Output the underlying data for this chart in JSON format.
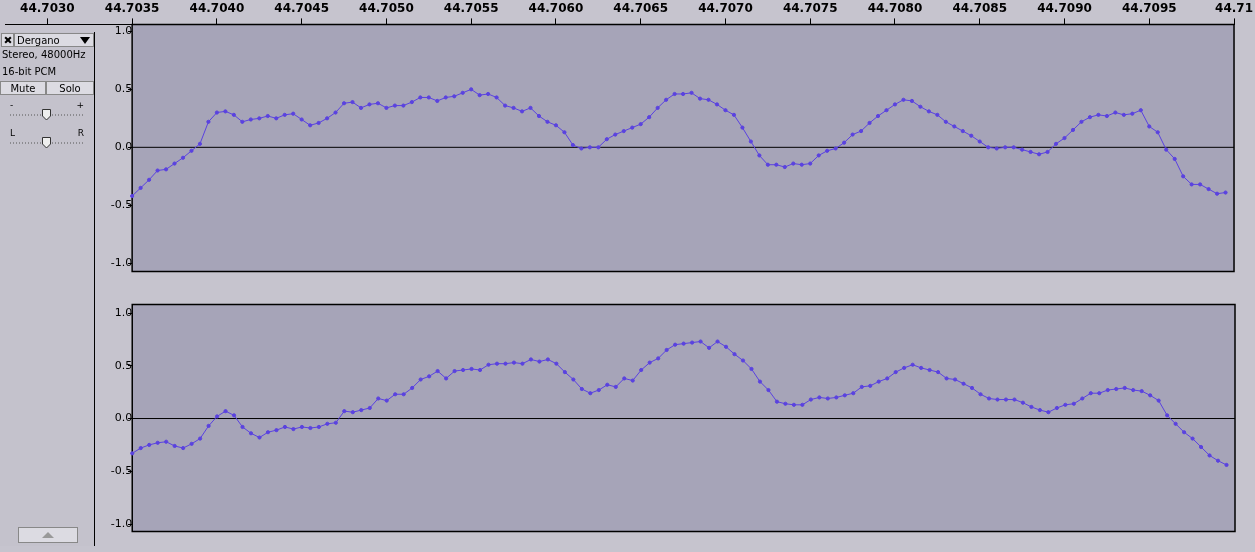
{
  "chart_data": [
    {
      "type": "line",
      "annotations": [
        "Dergano",
        "Stereo, 48000Hz",
        "16-bit PCM",
        "Mute",
        "Solo",
        "-",
        "+",
        "L",
        "R"
      ],
      "x": [
        44.7035,
        44.70355,
        44.7036,
        44.70365,
        44.7037,
        44.70375,
        44.7038,
        44.70385,
        44.7039,
        44.70395,
        44.704,
        44.70405,
        44.7041,
        44.70415,
        44.7042,
        44.70425,
        44.7043,
        44.70435,
        44.7044,
        44.70445,
        44.7045,
        44.70455,
        44.7046,
        44.70465,
        44.7047,
        44.70475,
        44.7048,
        44.70485,
        44.7049,
        44.70495,
        44.705,
        44.70505,
        44.7051,
        44.70515,
        44.7052,
        44.70525,
        44.7053,
        44.70535,
        44.7054,
        44.70545,
        44.7055,
        44.70555,
        44.7056,
        44.70565,
        44.7057,
        44.70575,
        44.7058,
        44.70585,
        44.7059,
        44.70595,
        44.706,
        44.70605,
        44.7061,
        44.70615,
        44.7062,
        44.70625,
        44.7063,
        44.70635,
        44.7064,
        44.70645,
        44.7065,
        44.70655,
        44.7066,
        44.70665,
        44.7067,
        44.70675,
        44.7068,
        44.70685,
        44.7069,
        44.70695,
        44.707,
        44.70705,
        44.7071,
        44.70715,
        44.7072,
        44.70725,
        44.7073,
        44.70735,
        44.7074,
        44.70745,
        44.7075,
        44.70755,
        44.7076,
        44.70765,
        44.7077,
        44.70775,
        44.7078,
        44.70785,
        44.7079,
        44.70795,
        44.708,
        44.70805,
        44.7081,
        44.70815,
        44.7082,
        44.70825,
        44.7083,
        44.70835,
        44.7084,
        44.70845,
        44.7085,
        44.70855,
        44.7086,
        44.70865,
        44.7087,
        44.70875,
        44.7088,
        44.70885,
        44.7089,
        44.70895,
        44.709,
        44.70905,
        44.7091,
        44.70915,
        44.7092,
        44.70925,
        44.7093,
        44.70935,
        44.7094,
        44.70945,
        44.7095,
        44.70955,
        44.7096,
        44.70965,
        44.7097,
        44.70975,
        44.7098,
        44.70985,
        44.7099,
        44.70995
      ],
      "series": [
        {
          "color": "#5a42e0",
          "values": [
            -0.42,
            -0.35,
            -0.28,
            -0.2,
            -0.19,
            -0.14,
            -0.09,
            -0.03,
            0.03,
            0.22,
            0.3,
            0.31,
            0.28,
            0.22,
            0.24,
            0.25,
            0.27,
            0.25,
            0.28,
            0.29,
            0.24,
            0.19,
            0.21,
            0.25,
            0.3,
            0.38,
            0.39,
            0.34,
            0.37,
            0.38,
            0.34,
            0.36,
            0.36,
            0.39,
            0.43,
            0.43,
            0.4,
            0.43,
            0.44,
            0.47,
            0.5,
            0.45,
            0.46,
            0.43,
            0.36,
            0.34,
            0.31,
            0.34,
            0.27,
            0.22,
            0.19,
            0.13,
            0.02,
            -0.01,
            0,
            0,
            0.07,
            0.11,
            0.14,
            0.17,
            0.2,
            0.26,
            0.34,
            0.41,
            0.46,
            0.46,
            0.47,
            0.42,
            0.41,
            0.37,
            0.32,
            0.28,
            0.17,
            0.05,
            -0.07,
            -0.15,
            -0.15,
            -0.17,
            -0.14,
            -0.15,
            -0.14,
            -0.07,
            -0.03,
            -0.01,
            0.04,
            0.11,
            0.14,
            0.21,
            0.27,
            0.32,
            0.37,
            0.41,
            0.4,
            0.35,
            0.31,
            0.28,
            0.22,
            0.18,
            0.14,
            0.1,
            0.05,
            0,
            -0.01,
            0,
            0,
            -0.02,
            -0.04,
            -0.06,
            -0.04,
            0.03,
            0.08,
            0.15,
            0.22,
            0.26,
            0.28,
            0.27,
            0.3,
            0.28,
            0.29,
            0.32,
            0.18,
            0.13,
            -0.02,
            -0.1,
            -0.25,
            -0.32,
            -0.32,
            -0.36,
            -0.4,
            -0.39
          ]
        }
      ],
      "xlim": [
        44.70275,
        44.71
      ],
      "xticks": [
        {
          "value": 44.703,
          "label": "44.7030"
        },
        44.7035,
        {
          "value": 44.704,
          "label": "44.7040"
        },
        44.7045,
        {
          "value": 44.705,
          "label": "44.7050"
        },
        44.7055,
        {
          "value": 44.706,
          "label": "44.7060"
        },
        44.7065,
        {
          "value": 44.707,
          "label": "44.7070"
        },
        44.7075,
        {
          "value": 44.708,
          "label": "44.7080"
        },
        44.7085,
        {
          "value": 44.709,
          "label": "44.7090"
        },
        44.7095,
        44.71
      ],
      "ylim": [
        -1.07,
        1.06
      ],
      "yticks": [
        {
          "value": -1,
          "label": "-1.0"
        },
        {
          "value": -0.5,
          "label": "-0.5"
        },
        {
          "value": 0,
          "label": "0.0"
        },
        {
          "value": 0.5,
          "label": "0.5"
        },
        {
          "value": 1,
          "label": "1.0"
        }
      ],
      "ref_lines": [
        {
          "axis": "y",
          "value": 0,
          "color": "#000000"
        }
      ],
      "bands": [
        {
          "axis": "x",
          "from": 44.7035,
          "to": 44.71,
          "color": "#a6a4b8"
        }
      ],
      "marker": "circle",
      "line_style": "solid"
    },
    {
      "type": "line",
      "x": [
        44.7035,
        44.70355,
        44.7036,
        44.70365,
        44.7037,
        44.70375,
        44.7038,
        44.70385,
        44.7039,
        44.70395,
        44.704,
        44.70405,
        44.7041,
        44.70415,
        44.7042,
        44.70425,
        44.7043,
        44.70435,
        44.7044,
        44.70445,
        44.7045,
        44.70455,
        44.7046,
        44.70465,
        44.7047,
        44.70475,
        44.7048,
        44.70485,
        44.7049,
        44.70495,
        44.705,
        44.70505,
        44.7051,
        44.70515,
        44.7052,
        44.70525,
        44.7053,
        44.70535,
        44.7054,
        44.70545,
        44.7055,
        44.70555,
        44.7056,
        44.70565,
        44.7057,
        44.70575,
        44.7058,
        44.70585,
        44.7059,
        44.70595,
        44.706,
        44.70605,
        44.7061,
        44.70615,
        44.7062,
        44.70625,
        44.7063,
        44.70635,
        44.7064,
        44.70645,
        44.7065,
        44.70655,
        44.7066,
        44.70665,
        44.7067,
        44.70675,
        44.7068,
        44.70685,
        44.7069,
        44.70695,
        44.707,
        44.70705,
        44.7071,
        44.70715,
        44.7072,
        44.70725,
        44.7073,
        44.70735,
        44.7074,
        44.70745,
        44.7075,
        44.70755,
        44.7076,
        44.70765,
        44.7077,
        44.70775,
        44.7078,
        44.70785,
        44.7079,
        44.70795,
        44.708,
        44.70805,
        44.7081,
        44.70815,
        44.7082,
        44.70825,
        44.7083,
        44.70835,
        44.7084,
        44.70845,
        44.7085,
        44.70855,
        44.7086,
        44.70865,
        44.7087,
        44.70875,
        44.7088,
        44.70885,
        44.7089,
        44.70895,
        44.709,
        44.70905,
        44.7091,
        44.70915,
        44.7092,
        44.70925,
        44.7093,
        44.70935,
        44.7094,
        44.70945,
        44.7095,
        44.70955,
        44.7096,
        44.70965,
        44.7097,
        44.70975,
        44.7098,
        44.70985,
        44.7099,
        44.70995
      ],
      "series": [
        {
          "color": "#5a42e0",
          "values": [
            -0.33,
            -0.28,
            -0.25,
            -0.23,
            -0.22,
            -0.26,
            -0.28,
            -0.24,
            -0.19,
            -0.07,
            0.02,
            0.07,
            0.03,
            -0.08,
            -0.14,
            -0.18,
            -0.13,
            -0.11,
            -0.08,
            -0.1,
            -0.08,
            -0.09,
            -0.08,
            -0.05,
            -0.04,
            0.07,
            0.06,
            0.08,
            0.1,
            0.19,
            0.17,
            0.23,
            0.23,
            0.29,
            0.37,
            0.4,
            0.45,
            0.38,
            0.45,
            0.46,
            0.47,
            0.46,
            0.51,
            0.52,
            0.52,
            0.53,
            0.52,
            0.56,
            0.54,
            0.56,
            0.52,
            0.44,
            0.37,
            0.28,
            0.24,
            0.27,
            0.32,
            0.3,
            0.38,
            0.36,
            0.46,
            0.53,
            0.57,
            0.65,
            0.7,
            0.71,
            0.72,
            0.73,
            0.67,
            0.73,
            0.68,
            0.61,
            0.55,
            0.47,
            0.35,
            0.27,
            0.16,
            0.14,
            0.13,
            0.13,
            0.18,
            0.2,
            0.19,
            0.2,
            0.22,
            0.24,
            0.3,
            0.31,
            0.35,
            0.38,
            0.44,
            0.48,
            0.51,
            0.48,
            0.46,
            0.44,
            0.38,
            0.37,
            0.33,
            0.29,
            0.23,
            0.19,
            0.18,
            0.18,
            0.18,
            0.15,
            0.11,
            0.08,
            0.06,
            0.1,
            0.13,
            0.14,
            0.19,
            0.24,
            0.24,
            0.27,
            0.28,
            0.29,
            0.27,
            0.26,
            0.22,
            0.17,
            0.03,
            -0.05,
            -0.13,
            -0.19,
            -0.27,
            -0.35,
            -0.4,
            -0.44
          ]
        }
      ],
      "xlim": [
        44.70275,
        44.71
      ],
      "ylim": [
        -1.07,
        1.08
      ],
      "yticks": [
        {
          "value": -1,
          "label": "-1.0"
        },
        {
          "value": -0.5,
          "label": "-0.5"
        },
        {
          "value": 0,
          "label": "0.0"
        },
        {
          "value": 0.5,
          "label": "0.5"
        },
        {
          "value": 1,
          "label": "1.0"
        }
      ],
      "ref_lines": [
        {
          "axis": "y",
          "value": 0,
          "color": "#000000"
        }
      ],
      "bands": [
        {
          "axis": "x",
          "from": 44.7035,
          "to": 44.71,
          "color": "#a6a4b8"
        }
      ],
      "tick_labels": "y",
      "marker": "circle",
      "line_style": "solid"
    }
  ]
}
